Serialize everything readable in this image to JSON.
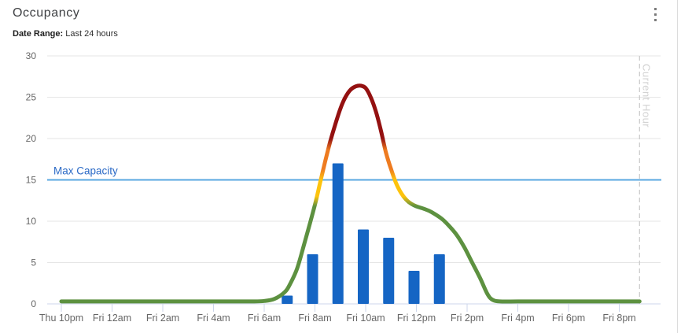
{
  "header": {
    "title": "Occupancy",
    "date_range_label": "Date Range:",
    "date_range_value": "Last 24 hours",
    "menu_icon": "kebab-menu-icon"
  },
  "colors": {
    "bar_blue": "#1565c4",
    "line_green": "#5d9140",
    "line_yellow": "#fdc30d",
    "line_orange": "#ee7b20",
    "line_red": "#941111",
    "max_capacity_line": "#58a7e0",
    "max_capacity_text": "#2b6ac6",
    "grid_line": "#e6e6e6",
    "axis_line": "#ccd6eb",
    "axis_label": "#666666",
    "current_hour_line": "#c9c9c9",
    "current_hour_text": "#d2d2d2"
  },
  "chart_data": {
    "type": "line+bar",
    "title": "Occupancy",
    "x_axis": {
      "tick_labels": [
        "Thu 10pm",
        "Fri 12am",
        "Fri 2am",
        "Fri 4am",
        "Fri 6am",
        "Fri 8am",
        "Fri 10am",
        "Fri 12pm",
        "Fri 2pm",
        "Fri 4pm",
        "Fri 6pm",
        "Fri 8pm"
      ],
      "hours_per_tick": 2,
      "start_time": "Thu 10pm"
    },
    "y_axis": {
      "ticks": [
        0,
        5,
        10,
        15,
        20,
        25,
        30
      ],
      "min": 0,
      "max": 30
    },
    "grid": "horizontal",
    "legend": "none",
    "max_capacity": {
      "label": "Max Capacity",
      "value": 15
    },
    "current_hour": {
      "label": "Current Hour",
      "t_hours_from_start": 22.8
    },
    "bars": {
      "name": "hourly-occupancy",
      "points": [
        {
          "time": "Fri 7am",
          "t": 9,
          "value": 1
        },
        {
          "time": "Fri 8am",
          "t": 10,
          "value": 6
        },
        {
          "time": "Fri 9am",
          "t": 11,
          "value": 17
        },
        {
          "time": "Fri 10am",
          "t": 12,
          "value": 9
        },
        {
          "time": "Fri 11am",
          "t": 13,
          "value": 8
        },
        {
          "time": "Fri 12pm",
          "t": 14,
          "value": 4
        },
        {
          "time": "Fri 1pm",
          "t": 15,
          "value": 6
        }
      ]
    },
    "line": {
      "name": "occupancy-trend",
      "points": [
        [
          0,
          0.3
        ],
        [
          1,
          0.3
        ],
        [
          2,
          0.3
        ],
        [
          3,
          0.3
        ],
        [
          4,
          0.3
        ],
        [
          5,
          0.3
        ],
        [
          6,
          0.3
        ],
        [
          7,
          0.3
        ],
        [
          7.5,
          0.3
        ],
        [
          8,
          0.35
        ],
        [
          8.4,
          0.6
        ],
        [
          8.8,
          1.4
        ],
        [
          9,
          2.3
        ],
        [
          9.3,
          4.3
        ],
        [
          9.6,
          7.5
        ],
        [
          10,
          12
        ],
        [
          10.2,
          14.6
        ],
        [
          10.4,
          17.2
        ],
        [
          10.6,
          19.6
        ],
        [
          10.8,
          21.7
        ],
        [
          11,
          23.6
        ],
        [
          11.2,
          25
        ],
        [
          11.4,
          25.9
        ],
        [
          11.6,
          26.3
        ],
        [
          11.8,
          26.4
        ],
        [
          12,
          26.1
        ],
        [
          12.2,
          25
        ],
        [
          12.4,
          23.3
        ],
        [
          12.6,
          21
        ],
        [
          12.8,
          18.3
        ],
        [
          13,
          16.3
        ],
        [
          13.2,
          14.6
        ],
        [
          13.4,
          13.4
        ],
        [
          13.6,
          12.6
        ],
        [
          13.8,
          12.1
        ],
        [
          14,
          11.8
        ],
        [
          14.3,
          11.5
        ],
        [
          14.6,
          11.1
        ],
        [
          15,
          10.3
        ],
        [
          15.3,
          9.4
        ],
        [
          15.6,
          8.3
        ],
        [
          15.9,
          6.8
        ],
        [
          16.2,
          5
        ],
        [
          16.5,
          3.2
        ],
        [
          16.8,
          1.2
        ],
        [
          17,
          0.5
        ],
        [
          17.3,
          0.3
        ],
        [
          18,
          0.3
        ],
        [
          19,
          0.3
        ],
        [
          20,
          0.3
        ],
        [
          21,
          0.3
        ],
        [
          22,
          0.3
        ],
        [
          22.8,
          0.3
        ]
      ],
      "color_stops_by_value": [
        {
          "v": 0,
          "color": "#5d9140"
        },
        {
          "v": 11.8,
          "color": "#5d9140"
        },
        {
          "v": 13.0,
          "color": "#fdc30d"
        },
        {
          "v": 15.0,
          "color": "#fdc30d"
        },
        {
          "v": 16.3,
          "color": "#ee7b20"
        },
        {
          "v": 18.6,
          "color": "#ee7b20"
        },
        {
          "v": 20,
          "color": "#941111"
        },
        {
          "v": 30,
          "color": "#941111"
        }
      ]
    }
  }
}
